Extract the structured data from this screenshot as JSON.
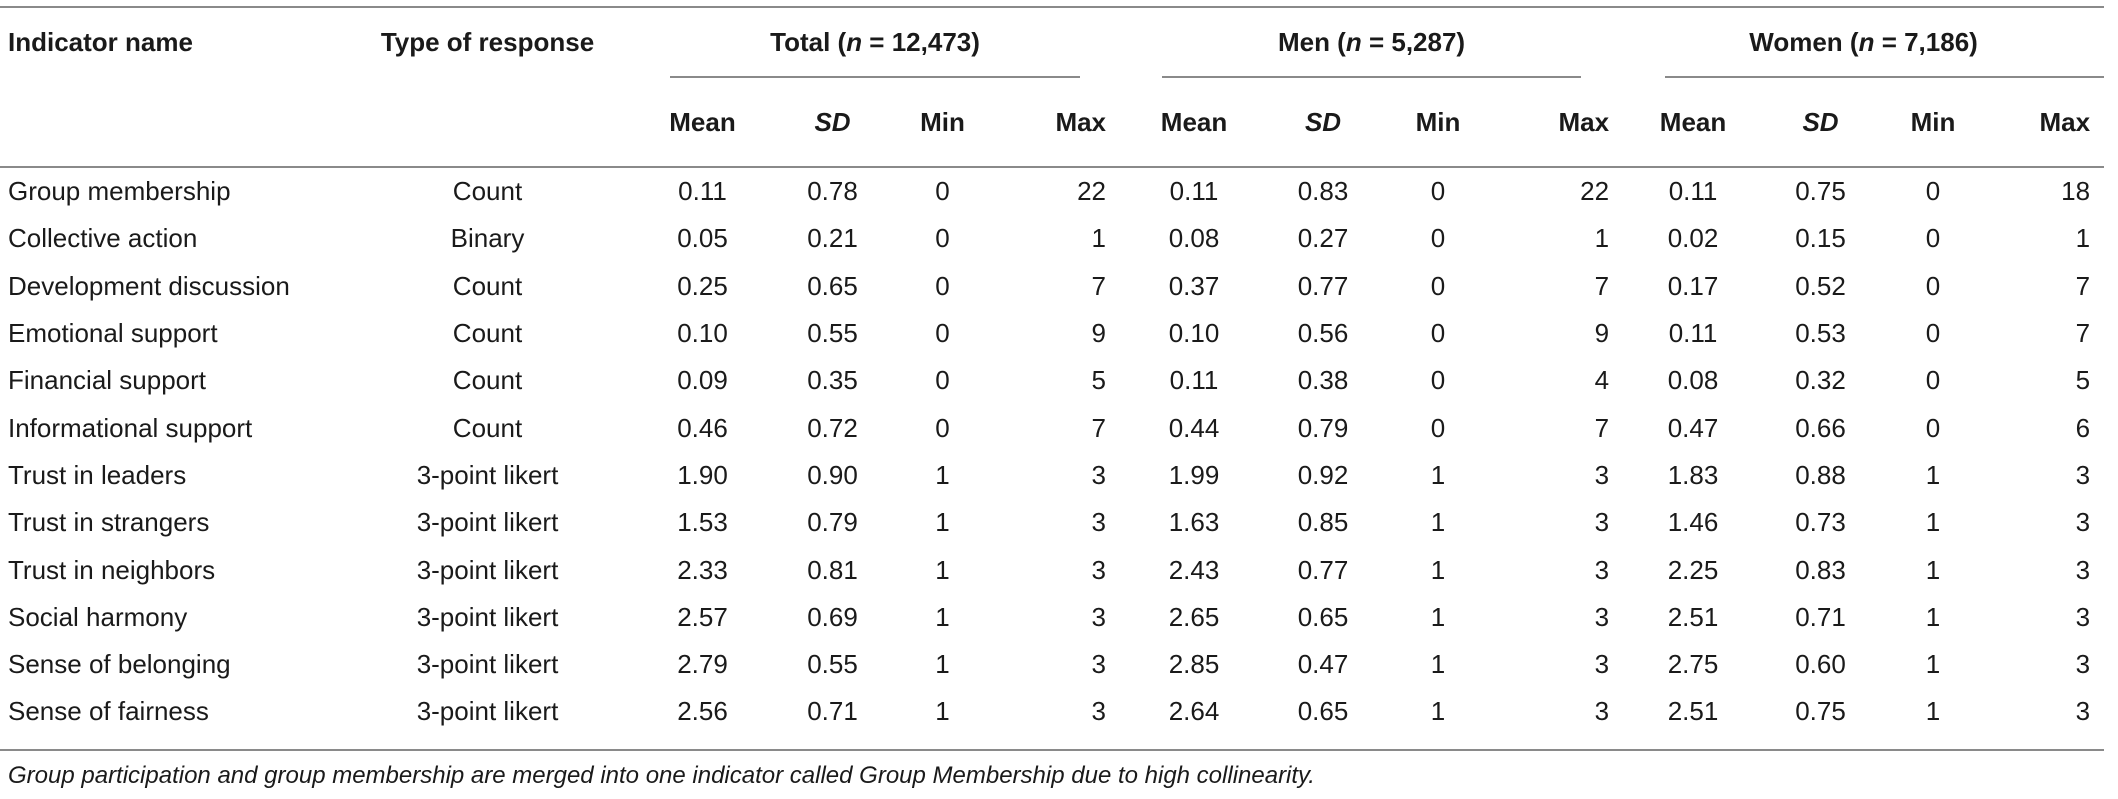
{
  "header": {
    "indicator_name": "Indicator name",
    "type_of_response": "Type of response",
    "groups": [
      {
        "pre": "Total (",
        "n": "n",
        "post": " = 12,473)"
      },
      {
        "pre": "Men (",
        "n": "n",
        "post": " = 5,287)"
      },
      {
        "pre": "Women (",
        "n": "n",
        "post": " = 7,186)"
      }
    ],
    "stats": [
      "Mean",
      "SD",
      "Min",
      "Max"
    ]
  },
  "rows": [
    {
      "name": "Group membership",
      "type": "Count",
      "values": [
        "0.11",
        "0.78",
        "0",
        "22",
        "0.11",
        "0.83",
        "0",
        "22",
        "0.11",
        "0.75",
        "0",
        "18"
      ]
    },
    {
      "name": "Collective action",
      "type": "Binary",
      "values": [
        "0.05",
        "0.21",
        "0",
        "1",
        "0.08",
        "0.27",
        "0",
        "1",
        "0.02",
        "0.15",
        "0",
        "1"
      ]
    },
    {
      "name": "Development discussion",
      "type": "Count",
      "values": [
        "0.25",
        "0.65",
        "0",
        "7",
        "0.37",
        "0.77",
        "0",
        "7",
        "0.17",
        "0.52",
        "0",
        "7"
      ]
    },
    {
      "name": "Emotional support",
      "type": "Count",
      "values": [
        "0.10",
        "0.55",
        "0",
        "9",
        "0.10",
        "0.56",
        "0",
        "9",
        "0.11",
        "0.53",
        "0",
        "7"
      ]
    },
    {
      "name": "Financial support",
      "type": "Count",
      "values": [
        "0.09",
        "0.35",
        "0",
        "5",
        "0.11",
        "0.38",
        "0",
        "4",
        "0.08",
        "0.32",
        "0",
        "5"
      ]
    },
    {
      "name": "Informational support",
      "type": "Count",
      "values": [
        "0.46",
        "0.72",
        "0",
        "7",
        "0.44",
        "0.79",
        "0",
        "7",
        "0.47",
        "0.66",
        "0",
        "6"
      ]
    },
    {
      "name": "Trust in leaders",
      "type": "3-point likert",
      "values": [
        "1.90",
        "0.90",
        "1",
        "3",
        "1.99",
        "0.92",
        "1",
        "3",
        "1.83",
        "0.88",
        "1",
        "3"
      ]
    },
    {
      "name": "Trust in strangers",
      "type": "3-point likert",
      "values": [
        "1.53",
        "0.79",
        "1",
        "3",
        "1.63",
        "0.85",
        "1",
        "3",
        "1.46",
        "0.73",
        "1",
        "3"
      ]
    },
    {
      "name": "Trust in neighbors",
      "type": "3-point likert",
      "values": [
        "2.33",
        "0.81",
        "1",
        "3",
        "2.43",
        "0.77",
        "1",
        "3",
        "2.25",
        "0.83",
        "1",
        "3"
      ]
    },
    {
      "name": "Social harmony",
      "type": "3-point likert",
      "values": [
        "2.57",
        "0.69",
        "1",
        "3",
        "2.65",
        "0.65",
        "1",
        "3",
        "2.51",
        "0.71",
        "1",
        "3"
      ]
    },
    {
      "name": "Sense of belonging",
      "type": "3-point likert",
      "values": [
        "2.79",
        "0.55",
        "1",
        "3",
        "2.85",
        "0.47",
        "1",
        "3",
        "2.75",
        "0.60",
        "1",
        "3"
      ]
    },
    {
      "name": "Sense of fairness",
      "type": "3-point likert",
      "values": [
        "2.56",
        "0.71",
        "1",
        "3",
        "2.64",
        "0.65",
        "1",
        "3",
        "2.51",
        "0.75",
        "1",
        "3"
      ]
    }
  ],
  "footnote": "Group participation and group membership are merged into one indicator called Group Membership due to high collinearity."
}
